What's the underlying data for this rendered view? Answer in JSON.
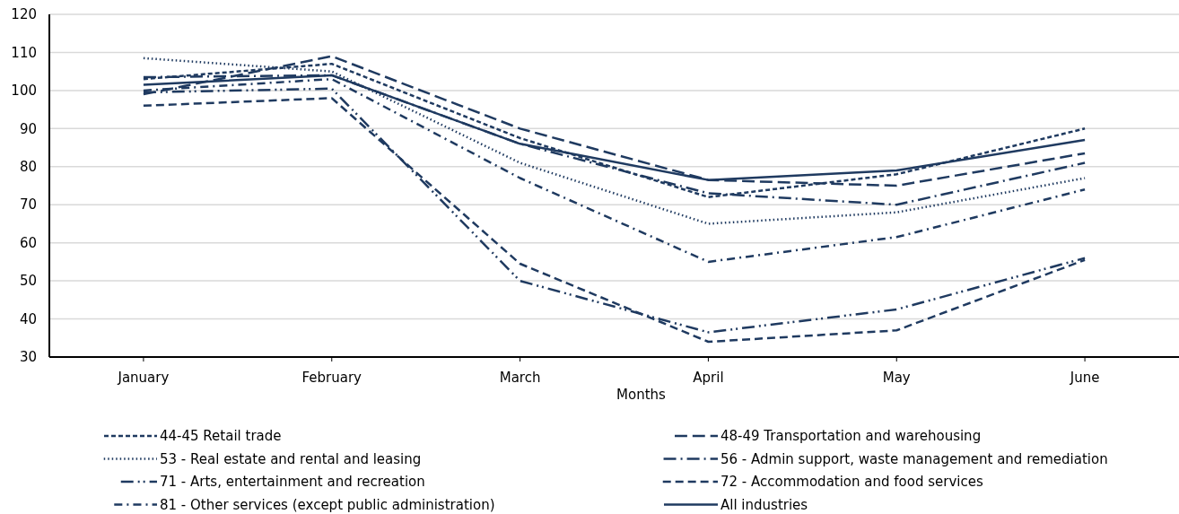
{
  "chart_data": {
    "type": "line",
    "xlabel": "Months",
    "categories": [
      "January",
      "February",
      "March",
      "April",
      "May",
      "June"
    ],
    "ylim": [
      30,
      120
    ],
    "yticks": [
      30,
      40,
      50,
      60,
      70,
      80,
      90,
      100,
      110,
      120
    ],
    "grid": "y",
    "legend": "bottom",
    "series": [
      {
        "name": "44-45 Retail trade",
        "color": "#1f3a60",
        "line_style": "shortdash",
        "values": [
          103,
          107,
          87.5,
          72,
          78,
          90
        ]
      },
      {
        "name": "48-49 Transportation and warehousing",
        "color": "#1f3a60",
        "line_style": "longdash",
        "values": [
          99,
          109,
          90,
          76.5,
          75,
          83.5
        ]
      },
      {
        "name": "53 - Real estate and rental and leasing",
        "color": "#1f3a60",
        "line_style": "dotted",
        "values": [
          108.5,
          105,
          81,
          65,
          68,
          77
        ]
      },
      {
        "name": "56 - Admin support, waste management and remediation",
        "color": "#1f3a60",
        "line_style": "longdashdot",
        "values": [
          103.5,
          104,
          86,
          73,
          70,
          81
        ]
      },
      {
        "name": "71 - Arts, entertainment and recreation",
        "color": "#1f3a60",
        "line_style": "longdashdotdot",
        "values": [
          99.5,
          100.5,
          50,
          36.5,
          42.5,
          56
        ]
      },
      {
        "name": "72 - Accommodation and food services",
        "color": "#1f3a60",
        "line_style": "dashed",
        "values": [
          96,
          98,
          54.5,
          34,
          37,
          55.5
        ]
      },
      {
        "name": "81 - Other services (except public administration)",
        "color": "#1f3a60",
        "line_style": "dashdot",
        "values": [
          100,
          103,
          77,
          55,
          61.5,
          74
        ]
      },
      {
        "name": "All industries",
        "color": "#1f3a60",
        "line_style": "solid",
        "values": [
          101.5,
          104,
          86,
          76.5,
          79,
          87
        ]
      }
    ]
  }
}
